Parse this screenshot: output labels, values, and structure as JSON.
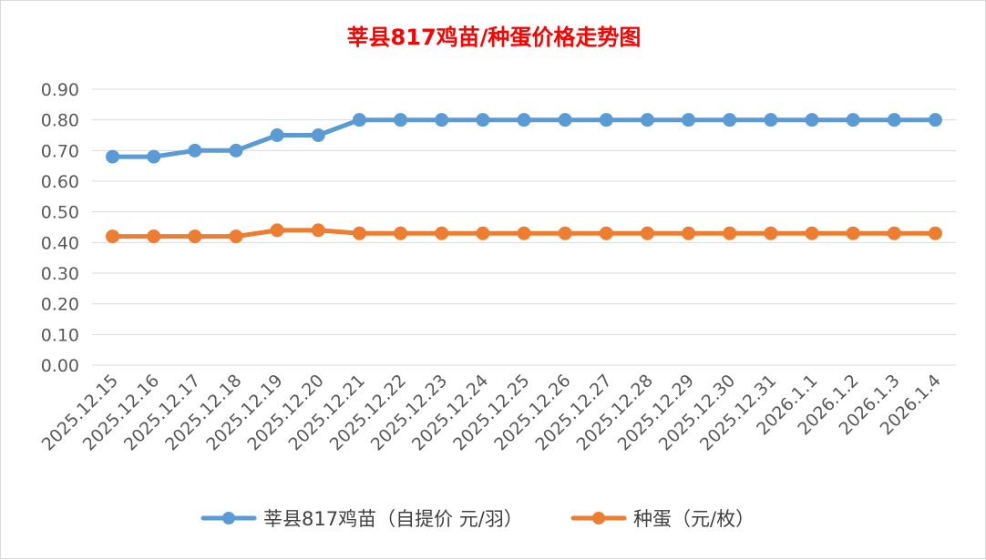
{
  "chart_data": {
    "type": "line",
    "title": "莘县817鸡苗/种蛋价格走势图",
    "title_color": "#ff0000",
    "xlabel": "",
    "ylabel": "",
    "ylim": [
      0,
      0.9
    ],
    "y_ticks": [
      "0.00",
      "0.10",
      "0.20",
      "0.30",
      "0.40",
      "0.50",
      "0.60",
      "0.70",
      "0.80",
      "0.90"
    ],
    "grid": true,
    "legend_position": "bottom",
    "categories": [
      "2025.12.15",
      "2025.12.16",
      "2025.12.17",
      "2025.12.18",
      "2025.12.19",
      "2025.12.20",
      "2025.12.21",
      "2025.12.22",
      "2025.12.23",
      "2025.12.24",
      "2025.12.25",
      "2025.12.26",
      "2025.12.27",
      "2025.12.28",
      "2025.12.29",
      "2025.12.30",
      "2025.12.31",
      "2026.1.1",
      "2026.1.2",
      "2026.1.3",
      "2026.1.4"
    ],
    "series": [
      {
        "name": "莘县817鸡苗（自提价 元/羽）",
        "color": "#5b9bd5",
        "values": [
          0.68,
          0.68,
          0.7,
          0.7,
          0.75,
          0.75,
          0.8,
          0.8,
          0.8,
          0.8,
          0.8,
          0.8,
          0.8,
          0.8,
          0.8,
          0.8,
          0.8,
          0.8,
          0.8,
          0.8,
          0.8
        ]
      },
      {
        "name": "种蛋（元/枚）",
        "color": "#ed7d31",
        "values": [
          0.42,
          0.42,
          0.42,
          0.42,
          0.44,
          0.44,
          0.43,
          0.43,
          0.43,
          0.43,
          0.43,
          0.43,
          0.43,
          0.43,
          0.43,
          0.43,
          0.43,
          0.43,
          0.43,
          0.43,
          0.43
        ]
      }
    ]
  }
}
